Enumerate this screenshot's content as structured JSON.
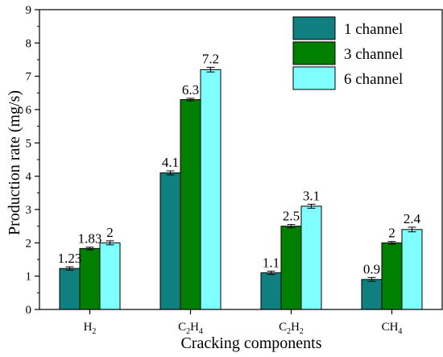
{
  "chart_data": {
    "type": "bar",
    "title": "",
    "xlabel": "Cracking components",
    "ylabel": "Production rate (mg/s)",
    "ylim": [
      0,
      9
    ],
    "yticks": [
      "0",
      "1",
      "2",
      "3",
      "4",
      "5",
      "6",
      "7",
      "8",
      "9"
    ],
    "categories": [
      {
        "base": "H",
        "sub": "2",
        "base2": "",
        "sub2": ""
      },
      {
        "base": "C",
        "sub": "2",
        "base2": "H",
        "sub2": "4"
      },
      {
        "base": "C",
        "sub": "2",
        "base2": "H",
        "sub2": "2"
      },
      {
        "base": "CH",
        "sub": "4",
        "base2": "",
        "sub2": ""
      }
    ],
    "series": [
      {
        "name": "1 channel",
        "color": "#0f7f7f",
        "values": [
          1.23,
          4.1,
          1.1,
          0.9
        ],
        "labels": [
          "1.23",
          "4.1",
          "1.1",
          "0.9"
        ],
        "errors": [
          0.05,
          0.06,
          0.05,
          0.06
        ]
      },
      {
        "name": "3 channel",
        "color": "#007f00",
        "values": [
          1.83,
          6.3,
          2.5,
          2.0
        ],
        "labels": [
          "1.83",
          "6.3",
          "2.5",
          "2"
        ],
        "errors": [
          0.04,
          0.04,
          0.05,
          0.04
        ]
      },
      {
        "name": "6 channel",
        "color": "#80ffff",
        "values": [
          2.0,
          7.2,
          3.1,
          2.4
        ],
        "labels": [
          "2",
          "7.2",
          "3.1",
          "2.4"
        ],
        "errors": [
          0.06,
          0.07,
          0.06,
          0.07
        ]
      }
    ],
    "legend_position": "top-right",
    "grid": false,
    "error_bars": true
  }
}
